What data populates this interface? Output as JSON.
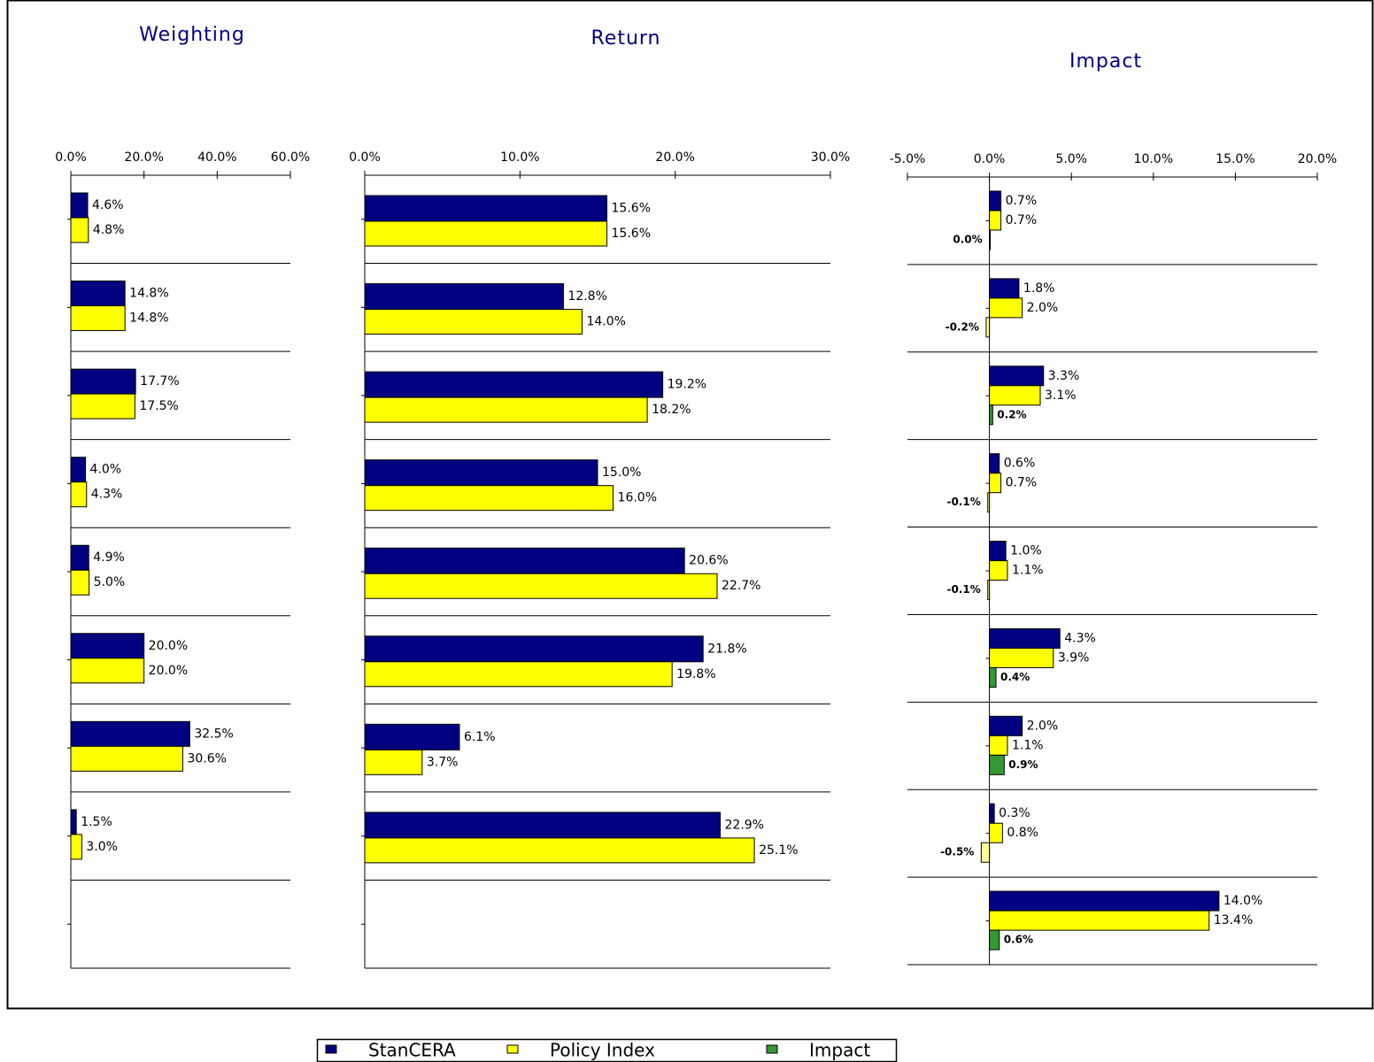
{
  "chart_data": [
    {
      "type": "bar",
      "orientation": "horizontal",
      "title": "Weighting",
      "categories": [
        null,
        null,
        null,
        null,
        null,
        null,
        null,
        null,
        null
      ],
      "xlim": [
        0,
        60
      ],
      "xticks": [
        {
          "value": 0,
          "label": "0.0%"
        },
        {
          "value": 20,
          "label": "20.0%"
        },
        {
          "value": 40,
          "label": "40.0%"
        },
        {
          "value": 60,
          "label": "60.0%"
        }
      ],
      "series": [
        {
          "name": "StanCERA",
          "color": "#000080",
          "values": [
            4.6,
            14.8,
            17.7,
            4.0,
            4.9,
            20.0,
            32.5,
            1.5,
            null
          ],
          "value_labels": [
            "4.6%",
            "14.8%",
            "17.7%",
            "4.0%",
            "4.9%",
            "20.0%",
            "32.5%",
            "1.5%",
            null
          ]
        },
        {
          "name": "Policy Index",
          "color": "#ffff00",
          "values": [
            4.8,
            14.8,
            17.5,
            4.3,
            5.0,
            20.0,
            30.6,
            3.0,
            null
          ],
          "value_labels": [
            "4.8%",
            "14.8%",
            "17.5%",
            "4.3%",
            "5.0%",
            "20.0%",
            "30.6%",
            "3.0%",
            null
          ]
        }
      ]
    },
    {
      "type": "bar",
      "orientation": "horizontal",
      "title": "Return",
      "categories": [
        null,
        null,
        null,
        null,
        null,
        null,
        null,
        null,
        null
      ],
      "xlim": [
        0,
        30
      ],
      "xticks": [
        {
          "value": 0,
          "label": "0.0%"
        },
        {
          "value": 10,
          "label": "10.0%"
        },
        {
          "value": 20,
          "label": "20.0%"
        },
        {
          "value": 30,
          "label": "30.0%"
        }
      ],
      "series": [
        {
          "name": "StanCERA",
          "color": "#000080",
          "values": [
            15.6,
            12.8,
            19.2,
            15.0,
            20.6,
            21.8,
            6.1,
            22.9,
            null
          ],
          "value_labels": [
            "15.6%",
            "12.8%",
            "19.2%",
            "15.0%",
            "20.6%",
            "21.8%",
            "6.1%",
            "22.9%",
            null
          ]
        },
        {
          "name": "Policy Index",
          "color": "#ffff00",
          "values": [
            15.6,
            14.0,
            18.2,
            16.0,
            22.7,
            19.8,
            3.7,
            25.1,
            null
          ],
          "value_labels": [
            "15.6%",
            "14.0%",
            "18.2%",
            "16.0%",
            "22.7%",
            "19.8%",
            "3.7%",
            "25.1%",
            null
          ]
        }
      ]
    },
    {
      "type": "bar",
      "orientation": "horizontal",
      "title": "Impact",
      "categories": [
        null,
        null,
        null,
        null,
        null,
        null,
        null,
        null,
        null
      ],
      "xlim": [
        -5,
        20
      ],
      "xticks": [
        {
          "value": -5,
          "label": "-5.0%"
        },
        {
          "value": 0,
          "label": "0.0%"
        },
        {
          "value": 5,
          "label": "5.0%"
        },
        {
          "value": 10,
          "label": "10.0%"
        },
        {
          "value": 15,
          "label": "15.0%"
        },
        {
          "value": 20,
          "label": "20.0%"
        }
      ],
      "series": [
        {
          "name": "StanCERA",
          "color": "#000080",
          "values": [
            0.7,
            1.8,
            3.3,
            0.6,
            1.0,
            4.3,
            2.0,
            0.3,
            14.0
          ],
          "value_labels": [
            "0.7%",
            "1.8%",
            "3.3%",
            "0.6%",
            "1.0%",
            "4.3%",
            "2.0%",
            "0.3%",
            "14.0%"
          ]
        },
        {
          "name": "Policy Index",
          "color": "#ffff00",
          "values": [
            0.7,
            2.0,
            3.1,
            0.7,
            1.1,
            3.9,
            1.1,
            0.8,
            13.4
          ],
          "value_labels": [
            "0.7%",
            "2.0%",
            "3.1%",
            "0.7%",
            "1.1%",
            "3.9%",
            "1.1%",
            "0.8%",
            "13.4%"
          ]
        },
        {
          "name": "Impact",
          "color": "#339933",
          "negative_color": "#ffff99",
          "values": [
            0.0,
            -0.2,
            0.2,
            -0.1,
            -0.1,
            0.4,
            0.9,
            -0.5,
            0.6
          ],
          "value_labels": [
            "0.0%",
            "-0.2%",
            "0.2%",
            "-0.1%",
            "-0.1%",
            "0.4%",
            "0.9%",
            "-0.5%",
            "0.6%"
          ]
        }
      ]
    }
  ]
}
